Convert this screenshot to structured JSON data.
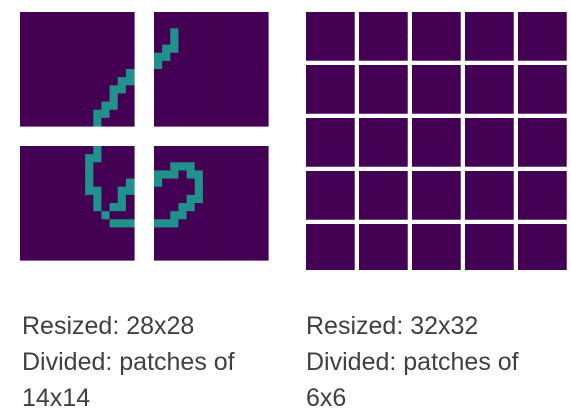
{
  "left_panel": {
    "caption": {
      "line1": "Resized: 28x28",
      "line2": "Divided: patches of",
      "line3": "14x14"
    }
  },
  "right_panel": {
    "caption": {
      "line1": "Resized: 32x32",
      "line2": "Divided: patches of",
      "line3": "6x6"
    }
  },
  "colors": {
    "background": "#440154",
    "low": "#3b528b",
    "mid": "#21918c",
    "high": "#5ec962",
    "peak": "#fde725",
    "caption_text": "#404040"
  }
}
